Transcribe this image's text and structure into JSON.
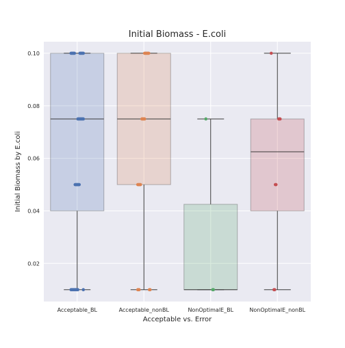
{
  "chart_data": {
    "type": "box",
    "title": "Initial Biomass - E.coli",
    "xlabel": "Acceptable vs. Error",
    "ylabel": "Initial Biomass by E.coli",
    "ylim": [
      0.0055,
      0.1044
    ],
    "yticks": [
      0.02,
      0.04,
      0.06,
      0.08,
      0.1
    ],
    "ytick_labels": [
      "0.02",
      "0.04",
      "0.06",
      "0.08",
      "0.10"
    ],
    "grid": true,
    "background": "#EAEAF2",
    "categories": [
      "Acceptable_BL",
      "Acceptable_nonBL",
      "NonOptimalE_BL",
      "NonOptimalE_nonBL"
    ],
    "boxes": [
      {
        "name": "Acceptable_BL",
        "color": "#4C72B0",
        "whisker_low": 0.01,
        "q1": 0.04,
        "median": 0.075,
        "q3": 0.1,
        "whisker_high": 0.1
      },
      {
        "name": "Acceptable_nonBL",
        "color": "#DD8452",
        "whisker_low": 0.01,
        "q1": 0.05,
        "median": 0.075,
        "q3": 0.1,
        "whisker_high": 0.1
      },
      {
        "name": "NonOptimalE_BL",
        "color": "#55A868",
        "whisker_low": 0.01,
        "q1": 0.01,
        "median": 0.01,
        "q3": 0.0425,
        "whisker_high": 0.075
      },
      {
        "name": "NonOptimalE_nonBL",
        "color": "#C44E52",
        "whisker_low": 0.01,
        "q1": 0.04,
        "median": 0.0625,
        "q3": 0.075,
        "whisker_high": 0.1
      }
    ],
    "points": [
      {
        "category": "Acceptable_BL",
        "values": [
          0.1,
          0.1,
          0.1,
          0.1,
          0.1,
          0.1,
          0.1,
          0.1,
          0.1,
          0.1,
          0.1,
          0.1,
          0.075,
          0.075,
          0.075,
          0.075,
          0.075,
          0.075,
          0.075,
          0.075,
          0.075,
          0.05,
          0.05,
          0.05,
          0.05,
          0.05,
          0.05,
          0.05,
          0.01,
          0.01,
          0.01,
          0.01,
          0.01,
          0.01,
          0.01,
          0.01,
          0.01,
          0.01,
          0.01,
          0.01
        ]
      },
      {
        "category": "Acceptable_nonBL",
        "values": [
          0.1,
          0.1,
          0.1,
          0.1,
          0.1,
          0.1,
          0.1,
          0.075,
          0.075,
          0.075,
          0.075,
          0.075,
          0.05,
          0.05,
          0.05,
          0.05,
          0.05,
          0.01,
          0.01,
          0.01,
          0.01,
          0.01
        ]
      },
      {
        "category": "NonOptimalE_BL",
        "values": [
          0.075,
          0.01,
          0.01
        ]
      },
      {
        "category": "NonOptimalE_nonBL",
        "values": [
          0.1,
          0.075,
          0.075,
          0.075,
          0.05,
          0.05,
          0.01,
          0.01
        ]
      }
    ]
  }
}
